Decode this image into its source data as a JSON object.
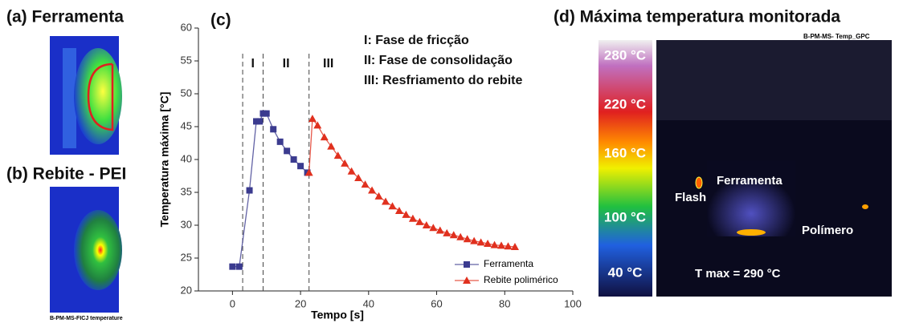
{
  "panels": {
    "a": {
      "label": "(a) Ferramenta"
    },
    "b": {
      "label": "(b) Rebite - PEI",
      "caption": "B-PM-MS-FICJ temperature"
    },
    "d": {
      "label": "(d) Máxima temperatura monitorada",
      "caption": "B-PM-MS- Temp_GPC",
      "scale_labels": [
        "280 °C",
        "220 °C",
        "160 °C",
        "100 °C",
        "40 °C"
      ],
      "image_labels": [
        "Flash",
        "Ferramenta",
        "Polímero"
      ],
      "tmax": "T max = 290 °C"
    }
  },
  "chart_data": {
    "type": "line",
    "panel_label": "(c)",
    "xlabel": "Tempo [s]",
    "ylabel": "Temperatura máxima [°C]",
    "xlim": [
      -10,
      100
    ],
    "xticks": [
      0,
      20,
      40,
      60,
      80,
      100
    ],
    "ylim": [
      20,
      60
    ],
    "yticks": [
      20,
      25,
      30,
      35,
      40,
      45,
      50,
      55,
      60
    ],
    "phase_lines": [
      3,
      9,
      22.5
    ],
    "phase_labels": [
      "I",
      "II",
      "III"
    ],
    "annotations": [
      "I: Fase de fricção",
      "II: Fase de consolidação",
      "III: Resfriamento do rebite"
    ],
    "legend": "lower right",
    "series": [
      {
        "name": "Ferramenta",
        "color": "#3b3b8f",
        "marker": "square",
        "x": [
          0,
          2,
          5,
          7,
          8,
          9,
          10,
          12,
          14,
          16,
          18,
          20,
          22
        ],
        "values": [
          23.7,
          23.7,
          35.3,
          45.8,
          45.8,
          47,
          47,
          44.6,
          42.7,
          41.3,
          40,
          39,
          38
        ]
      },
      {
        "name": "Rebite polimérico",
        "color": "#e0301e",
        "marker": "triangle",
        "x": [
          22.5,
          23.5,
          25,
          27,
          29,
          31,
          33,
          35,
          37,
          39,
          41,
          43,
          45,
          47,
          49,
          51,
          53,
          55,
          57,
          59,
          61,
          63,
          65,
          67,
          69,
          71,
          73,
          75,
          77,
          79,
          81,
          83
        ],
        "values": [
          38,
          46.2,
          45.2,
          43.4,
          42,
          40.6,
          39.4,
          38.2,
          37.2,
          36.2,
          35.3,
          34.4,
          33.6,
          32.9,
          32.2,
          31.6,
          31,
          30.5,
          30,
          29.6,
          29.2,
          28.8,
          28.5,
          28.2,
          27.9,
          27.6,
          27.4,
          27.2,
          27,
          26.9,
          26.8,
          26.7
        ]
      }
    ]
  }
}
